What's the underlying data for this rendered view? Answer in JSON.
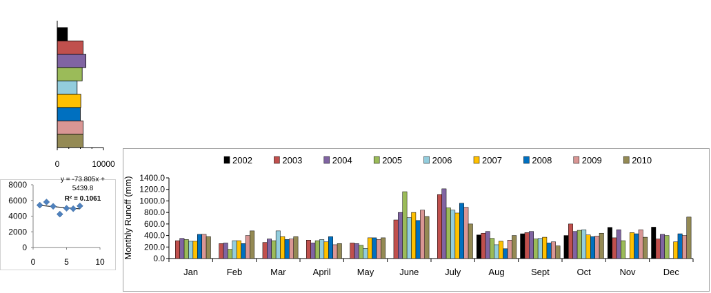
{
  "colors": {
    "2002": "#000000",
    "2003": "#c0504d",
    "2004": "#8064a2",
    "2005": "#9bbb59",
    "2006": "#93cddd",
    "2007": "#ffc000",
    "2008": "#0070c0",
    "2009": "#d99694",
    "2010": "#948a54",
    "scatter_marker": "#4f81bd",
    "axis": "#000000",
    "border": "#888888"
  },
  "chart_data": [
    {
      "id": "monthly-runoff",
      "type": "bar",
      "ylabel": "Monthly  Runoff (mm)",
      "xlabel": "",
      "ylim": [
        0,
        1400
      ],
      "yticks": [
        "0.0",
        "200.0",
        "400.0",
        "600.0",
        "800.0",
        "1000.0",
        "1200.0",
        "1400.0"
      ],
      "ytick_values": [
        0,
        200,
        400,
        600,
        800,
        1000,
        1200,
        1400
      ],
      "legend_position": "top",
      "categories": [
        "Jan",
        "Feb",
        "Mar",
        "April",
        "May",
        "June",
        "July",
        "Aug",
        "Sept",
        "Oct",
        "Nov",
        "Dec"
      ],
      "series": [
        {
          "name": "2002",
          "values": [
            0,
            0,
            0,
            0,
            0,
            0,
            0,
            410,
            430,
            400,
            540,
            545
          ]
        },
        {
          "name": "2003",
          "values": [
            310,
            260,
            280,
            320,
            270,
            670,
            1110,
            440,
            450,
            600,
            360,
            340
          ]
        },
        {
          "name": "2004",
          "values": [
            350,
            270,
            340,
            270,
            260,
            800,
            1210,
            470,
            470,
            470,
            500,
            420
          ]
        },
        {
          "name": "2005",
          "values": [
            330,
            160,
            310,
            310,
            230,
            1160,
            880,
            350,
            340,
            490,
            310,
            400
          ]
        },
        {
          "name": "2006",
          "values": [
            300,
            310,
            480,
            330,
            175,
            710,
            840,
            240,
            350,
            500,
            0,
            0
          ]
        },
        {
          "name": "2007",
          "values": [
            300,
            310,
            380,
            290,
            360,
            800,
            790,
            300,
            370,
            410,
            450,
            290
          ]
        },
        {
          "name": "2008",
          "values": [
            420,
            260,
            330,
            380,
            360,
            660,
            960,
            170,
            270,
            380,
            430,
            430
          ]
        },
        {
          "name": "2009",
          "values": [
            420,
            400,
            340,
            240,
            330,
            840,
            890,
            320,
            290,
            390,
            500,
            400
          ]
        },
        {
          "name": "2010",
          "values": [
            380,
            480,
            380,
            260,
            360,
            730,
            600,
            400,
            220,
            440,
            370,
            720
          ]
        }
      ]
    },
    {
      "id": "annual-hbar",
      "type": "bar",
      "orientation": "horizontal",
      "xlim": [
        0,
        10000
      ],
      "xticks": [
        "0",
        "10000"
      ],
      "xtick_values": [
        0,
        10000
      ],
      "categories": [
        "2002",
        "2003",
        "2004",
        "2005",
        "2006",
        "2007",
        "2008",
        "2009",
        "2010"
      ],
      "values": [
        2200,
        5600,
        6200,
        5400,
        4300,
        5100,
        5000,
        5600,
        5600
      ]
    },
    {
      "id": "annual-trend",
      "type": "scatter",
      "xlim": [
        0,
        10
      ],
      "ylim": [
        0,
        8000
      ],
      "xticks": [
        "0",
        "5",
        "10"
      ],
      "xtick_values": [
        0,
        5,
        10
      ],
      "yticks": [
        "0",
        "2000",
        "4000",
        "6000",
        "8000"
      ],
      "ytick_values": [
        0,
        2000,
        4000,
        6000,
        8000
      ],
      "grid": false,
      "points": {
        "x": [
          1,
          2,
          3,
          4,
          5,
          6,
          7
        ],
        "y": [
          5400,
          5800,
          5250,
          4250,
          5000,
          4950,
          5300
        ]
      },
      "trendline": {
        "slope": -73.805,
        "intercept": 5439.8,
        "x_range": [
          1,
          7
        ]
      },
      "annotation_lines": [
        "y = -73.805x +",
        "5439.8",
        "R² = 0.1061"
      ]
    }
  ]
}
